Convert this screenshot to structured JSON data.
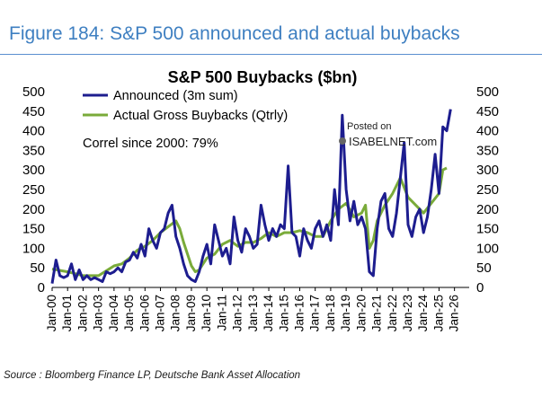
{
  "figure": {
    "title": "Figure 184: S&P 500 announced and actual buybacks",
    "source": "Source : Bloomberg Finance LP, Deutsche Bank Asset Allocation",
    "watermark": {
      "line1": "Posted on",
      "line2": "ISABELNET.com"
    }
  },
  "colors": {
    "announced": "#1d1d8f",
    "actual": "#7aab3a",
    "title": "#3e7fc1"
  },
  "chart_data": {
    "type": "line",
    "title": "S&P 500 Buybacks ($bn)",
    "annotation": "Correl since 2000: 79%",
    "legend_position": "top-left",
    "grid": false,
    "ylim": [
      0,
      500
    ],
    "y_ticks": [
      "0",
      "50",
      "100",
      "150",
      "200",
      "250",
      "300",
      "350",
      "400",
      "450",
      "500"
    ],
    "x_range": [
      2000,
      2026.95
    ],
    "x_tick_labels": [
      "Jan-00",
      "Jan-01",
      "Jan-02",
      "Jan-03",
      "Jan-04",
      "Jan-05",
      "Jan-06",
      "Jan-07",
      "Jan-08",
      "Jan-09",
      "Jan-10",
      "Jan-11",
      "Jan-12",
      "Jan-13",
      "Jan-14",
      "Jan-15",
      "Jan-16",
      "Jan-17",
      "Jan-18",
      "Jan-19",
      "Jan-20",
      "Jan-21",
      "Jan-22",
      "Jan-23",
      "Jan-24",
      "Jan-25",
      "Jan-26"
    ],
    "series": [
      {
        "name": "Announced (3m sum)",
        "color": "#1d1d8f",
        "x": [
          2000.0,
          2000.25,
          2000.5,
          2000.75,
          2001.0,
          2001.25,
          2001.5,
          2001.75,
          2002.0,
          2002.25,
          2002.5,
          2002.75,
          2003.0,
          2003.25,
          2003.5,
          2003.75,
          2004.0,
          2004.25,
          2004.5,
          2004.75,
          2005.0,
          2005.25,
          2005.5,
          2005.75,
          2006.0,
          2006.25,
          2006.5,
          2006.75,
          2007.0,
          2007.25,
          2007.5,
          2007.75,
          2008.0,
          2008.25,
          2008.5,
          2008.75,
          2009.0,
          2009.25,
          2009.5,
          2009.75,
          2010.0,
          2010.25,
          2010.5,
          2010.75,
          2011.0,
          2011.25,
          2011.5,
          2011.75,
          2012.0,
          2012.25,
          2012.5,
          2012.75,
          2013.0,
          2013.25,
          2013.5,
          2013.75,
          2014.0,
          2014.25,
          2014.5,
          2014.75,
          2015.0,
          2015.25,
          2015.5,
          2015.75,
          2016.0,
          2016.25,
          2016.5,
          2016.75,
          2017.0,
          2017.25,
          2017.5,
          2017.75,
          2018.0,
          2018.25,
          2018.5,
          2018.75,
          2019.0,
          2019.25,
          2019.5,
          2019.75,
          2020.0,
          2020.25,
          2020.5,
          2020.75,
          2021.0,
          2021.25,
          2021.5,
          2021.75,
          2022.0,
          2022.25,
          2022.5,
          2022.75,
          2023.0,
          2023.25,
          2023.5,
          2023.75,
          2024.0,
          2024.25,
          2024.5,
          2024.75,
          2025.0,
          2025.25,
          2025.5,
          2025.75
        ],
        "values": [
          10,
          70,
          30,
          25,
          30,
          60,
          20,
          45,
          20,
          30,
          20,
          25,
          20,
          15,
          40,
          35,
          40,
          50,
          40,
          65,
          70,
          90,
          75,
          110,
          80,
          150,
          120,
          100,
          140,
          150,
          190,
          210,
          130,
          100,
          60,
          30,
          20,
          15,
          40,
          80,
          110,
          60,
          160,
          120,
          80,
          100,
          60,
          180,
          120,
          90,
          150,
          130,
          100,
          110,
          210,
          160,
          120,
          150,
          130,
          160,
          150,
          310,
          140,
          130,
          80,
          150,
          120,
          100,
          150,
          170,
          130,
          160,
          120,
          250,
          160,
          440,
          250,
          170,
          220,
          160,
          180,
          150,
          40,
          30,
          150,
          220,
          240,
          150,
          130,
          190,
          280,
          370,
          160,
          130,
          180,
          200,
          140,
          180,
          250,
          340,
          240,
          410,
          400,
          455
        ]
      },
      {
        "name": "Actual Gross Buybacks (Qtrly)",
        "color": "#7aab3a",
        "x": [
          2000.0,
          2001.0,
          2002.0,
          2003.0,
          2004.0,
          2004.5,
          2005.0,
          2005.5,
          2006.0,
          2006.5,
          2007.0,
          2007.5,
          2008.0,
          2008.25,
          2008.5,
          2008.75,
          2009.0,
          2009.25,
          2009.5,
          2009.75,
          2010.0,
          2010.5,
          2011.0,
          2011.5,
          2012.0,
          2012.5,
          2013.0,
          2013.5,
          2014.0,
          2014.5,
          2015.0,
          2015.5,
          2016.0,
          2016.5,
          2017.0,
          2017.5,
          2018.0,
          2018.5,
          2019.0,
          2019.5,
          2020.0,
          2020.25,
          2020.5,
          2020.75,
          2021.0,
          2021.5,
          2022.0,
          2022.5,
          2023.0,
          2023.5,
          2024.0,
          2024.5,
          2025.0,
          2025.25,
          2025.5
        ],
        "values": [
          47,
          40,
          30,
          30,
          55,
          60,
          75,
          95,
          105,
          120,
          140,
          155,
          170,
          150,
          115,
          85,
          55,
          40,
          45,
          60,
          75,
          85,
          110,
          120,
          105,
          115,
          115,
          125,
          140,
          130,
          140,
          140,
          145,
          140,
          130,
          130,
          170,
          200,
          215,
          180,
          190,
          210,
          100,
          120,
          170,
          210,
          240,
          280,
          230,
          210,
          190,
          215,
          240,
          300,
          305
        ]
      }
    ]
  }
}
